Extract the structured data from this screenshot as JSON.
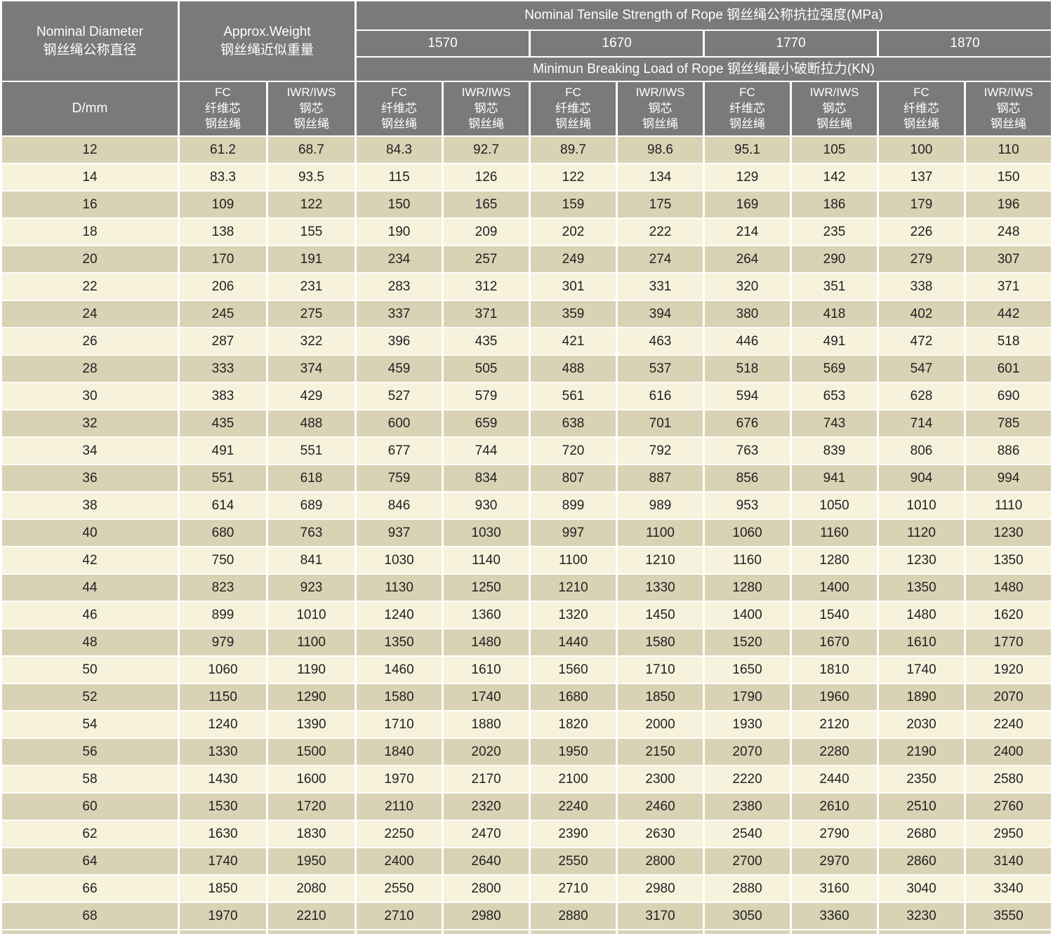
{
  "table": {
    "title_diameter": "Nominal Diameter\n钢丝绳公称直径",
    "title_weight": "Approx.Weight\n钢丝绳近似重量",
    "title_tensile": "Nominal Tensile Strength of Rope  钢丝绳公称抗拉强度(MPa)",
    "title_breaking_load": "Minimun Breaking Load of Rope  钢丝绳最小破断拉力(KN)",
    "strength_grades": [
      "1570",
      "1670",
      "1770",
      "1870"
    ],
    "col_diameter": "D/mm",
    "col_fc": "FC\n纤维芯\n钢丝绳",
    "col_iwr": "IWR/IWS\n钢芯\n钢丝绳",
    "rows": [
      [
        "12",
        "61.2",
        "68.7",
        "84.3",
        "92.7",
        "89.7",
        "98.6",
        "95.1",
        "105",
        "100",
        "110"
      ],
      [
        "14",
        "83.3",
        "93.5",
        "115",
        "126",
        "122",
        "134",
        "129",
        "142",
        "137",
        "150"
      ],
      [
        "16",
        "109",
        "122",
        "150",
        "165",
        "159",
        "175",
        "169",
        "186",
        "179",
        "196"
      ],
      [
        "18",
        "138",
        "155",
        "190",
        "209",
        "202",
        "222",
        "214",
        "235",
        "226",
        "248"
      ],
      [
        "20",
        "170",
        "191",
        "234",
        "257",
        "249",
        "274",
        "264",
        "290",
        "279",
        "307"
      ],
      [
        "22",
        "206",
        "231",
        "283",
        "312",
        "301",
        "331",
        "320",
        "351",
        "338",
        "371"
      ],
      [
        "24",
        "245",
        "275",
        "337",
        "371",
        "359",
        "394",
        "380",
        "418",
        "402",
        "442"
      ],
      [
        "26",
        "287",
        "322",
        "396",
        "435",
        "421",
        "463",
        "446",
        "491",
        "472",
        "518"
      ],
      [
        "28",
        "333",
        "374",
        "459",
        "505",
        "488",
        "537",
        "518",
        "569",
        "547",
        "601"
      ],
      [
        "30",
        "383",
        "429",
        "527",
        "579",
        "561",
        "616",
        "594",
        "653",
        "628",
        "690"
      ],
      [
        "32",
        "435",
        "488",
        "600",
        "659",
        "638",
        "701",
        "676",
        "743",
        "714",
        "785"
      ],
      [
        "34",
        "491",
        "551",
        "677",
        "744",
        "720",
        "792",
        "763",
        "839",
        "806",
        "886"
      ],
      [
        "36",
        "551",
        "618",
        "759",
        "834",
        "807",
        "887",
        "856",
        "941",
        "904",
        "994"
      ],
      [
        "38",
        "614",
        "689",
        "846",
        "930",
        "899",
        "989",
        "953",
        "1050",
        "1010",
        "1110"
      ],
      [
        "40",
        "680",
        "763",
        "937",
        "1030",
        "997",
        "1100",
        "1060",
        "1160",
        "1120",
        "1230"
      ],
      [
        "42",
        "750",
        "841",
        "1030",
        "1140",
        "1100",
        "1210",
        "1160",
        "1280",
        "1230",
        "1350"
      ],
      [
        "44",
        "823",
        "923",
        "1130",
        "1250",
        "1210",
        "1330",
        "1280",
        "1400",
        "1350",
        "1480"
      ],
      [
        "46",
        "899",
        "1010",
        "1240",
        "1360",
        "1320",
        "1450",
        "1400",
        "1540",
        "1480",
        "1620"
      ],
      [
        "48",
        "979",
        "1100",
        "1350",
        "1480",
        "1440",
        "1580",
        "1520",
        "1670",
        "1610",
        "1770"
      ],
      [
        "50",
        "1060",
        "1190",
        "1460",
        "1610",
        "1560",
        "1710",
        "1650",
        "1810",
        "1740",
        "1920"
      ],
      [
        "52",
        "1150",
        "1290",
        "1580",
        "1740",
        "1680",
        "1850",
        "1790",
        "1960",
        "1890",
        "2070"
      ],
      [
        "54",
        "1240",
        "1390",
        "1710",
        "1880",
        "1820",
        "2000",
        "1930",
        "2120",
        "2030",
        "2240"
      ],
      [
        "56",
        "1330",
        "1500",
        "1840",
        "2020",
        "1950",
        "2150",
        "2070",
        "2280",
        "2190",
        "2400"
      ],
      [
        "58",
        "1430",
        "1600",
        "1970",
        "2170",
        "2100",
        "2300",
        "2220",
        "2440",
        "2350",
        "2580"
      ],
      [
        "60",
        "1530",
        "1720",
        "2110",
        "2320",
        "2240",
        "2460",
        "2380",
        "2610",
        "2510",
        "2760"
      ],
      [
        "62",
        "1630",
        "1830",
        "2250",
        "2470",
        "2390",
        "2630",
        "2540",
        "2790",
        "2680",
        "2950"
      ],
      [
        "64",
        "1740",
        "1950",
        "2400",
        "2640",
        "2550",
        "2800",
        "2700",
        "2970",
        "2860",
        "3140"
      ],
      [
        "66",
        "1850",
        "2080",
        "2550",
        "2800",
        "2710",
        "2980",
        "2880",
        "3160",
        "3040",
        "3340"
      ],
      [
        "68",
        "1970",
        "2210",
        "2710",
        "2980",
        "2880",
        "3170",
        "3050",
        "3360",
        "3230",
        "3550"
      ]
    ]
  },
  "colors": {
    "header_bg": "#7a7a7a",
    "row_tan": "#d9d2b4",
    "row_cream": "#f6f2dc",
    "separator": "#ffffff",
    "data_text": "#222222",
    "header_text": "#ffffff"
  }
}
